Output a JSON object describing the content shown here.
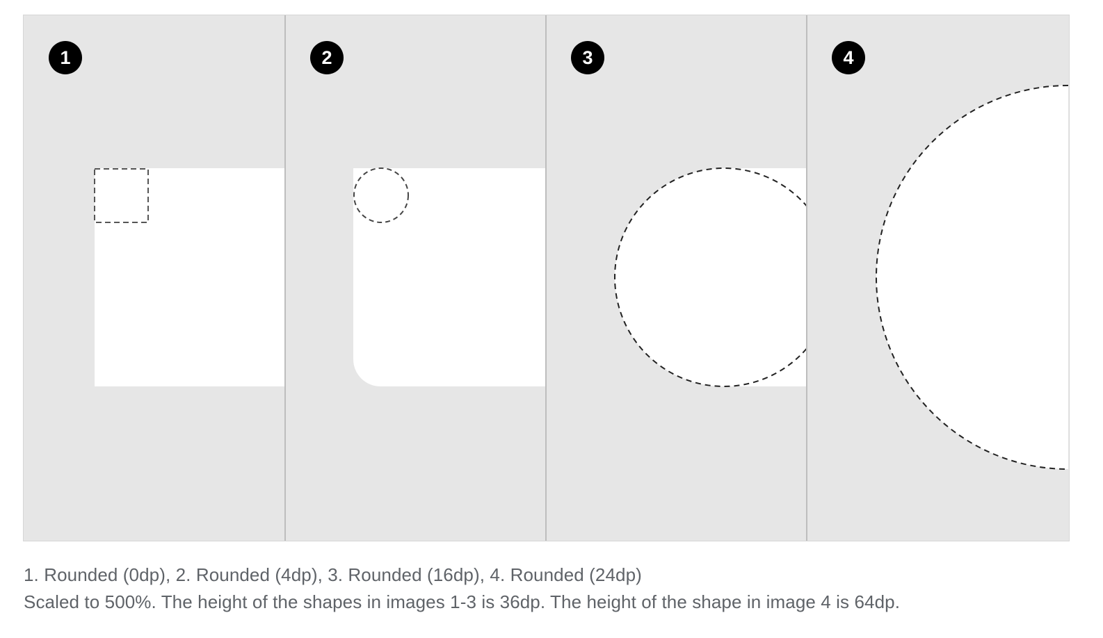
{
  "panels": [
    {
      "number": "1"
    },
    {
      "number": "2"
    },
    {
      "number": "3"
    },
    {
      "number": "4"
    }
  ],
  "caption": {
    "line1": "1. Rounded (0dp), 2. Rounded (4dp), 3. Rounded (16dp), 4. Rounded (24dp)",
    "line2": "Scaled to 500%. The height of the shapes in images 1-3 is 36dp. The height of the shape in image 4 is 64dp."
  },
  "colors": {
    "background": "#e6e6e6",
    "shape": "#ffffff",
    "badge": "#000000",
    "divider": "#bdbdbd",
    "caption": "#5f6368",
    "guide": "#555555"
  }
}
